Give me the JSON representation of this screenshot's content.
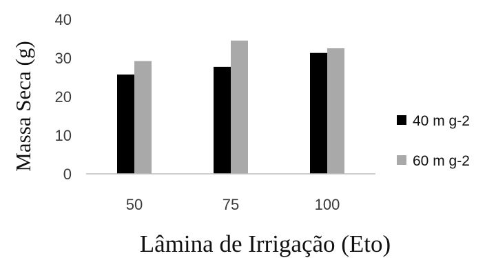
{
  "chart_data": {
    "type": "bar",
    "categories": [
      "50",
      "75",
      "100"
    ],
    "series": [
      {
        "name": "40 m g-2",
        "values": [
          25.7,
          27.7,
          31.3
        ],
        "color": "#000000"
      },
      {
        "name": "60 m g-2",
        "values": [
          29.2,
          34.5,
          32.5
        ],
        "color": "#a9a9a9"
      }
    ],
    "xlabel": "Lâmina de Irrigação (Eto)",
    "ylabel": "Massa Seca (g)",
    "ylim": [
      0,
      40
    ],
    "yticks": [
      0,
      10,
      20,
      30,
      40
    ],
    "grid": false,
    "legend_position": "right"
  }
}
